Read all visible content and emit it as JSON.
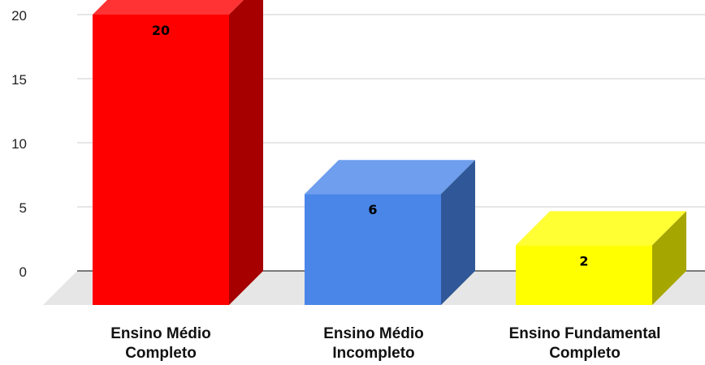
{
  "chart_data": {
    "type": "bar",
    "style": "3d",
    "categories": [
      "Ensino Médio\nCompleto",
      "Ensino Médio\nIncompleto",
      "Ensino Fundamental\nCompleto"
    ],
    "values": [
      20,
      6,
      2
    ],
    "data_labels": [
      "20",
      "6",
      "2"
    ],
    "colors": [
      "#ff0000",
      "#4a86e8",
      "#ffff00"
    ],
    "ylim": [
      0,
      20
    ],
    "yticks": [
      "20",
      "15",
      "10",
      "5",
      "0"
    ],
    "grid": true,
    "legend": "none"
  }
}
